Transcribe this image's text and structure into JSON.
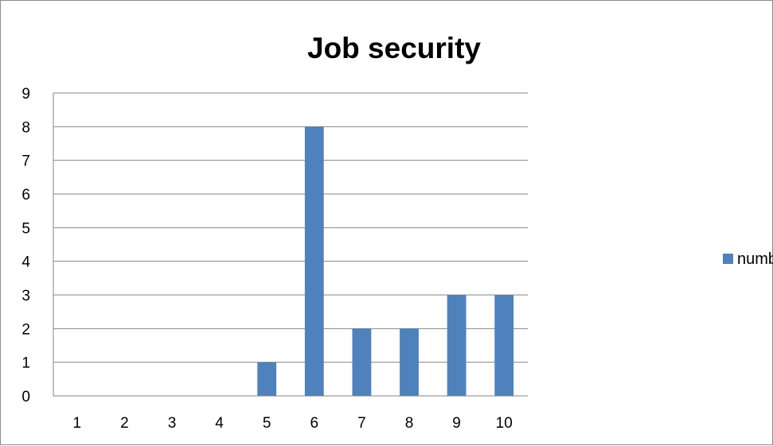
{
  "chart_data": {
    "type": "bar",
    "title": "Job security",
    "categories": [
      "1",
      "2",
      "3",
      "4",
      "5",
      "6",
      "7",
      "8",
      "9",
      "10"
    ],
    "series": [
      {
        "name": "number of responses",
        "values": [
          0,
          0,
          0,
          0,
          1,
          8,
          2,
          2,
          3,
          3
        ],
        "color": "#4f81bd"
      }
    ],
    "xlabel": "",
    "ylabel": "",
    "ylim": [
      0,
      9
    ],
    "yticks": [
      0,
      1,
      2,
      3,
      4,
      5,
      6,
      7,
      8,
      9
    ],
    "grid": true,
    "legend_position": "right"
  },
  "colors": {
    "bar": "#4f81bd",
    "gridline": "#868686",
    "axis": "#868686",
    "frame": "#8c8c8c"
  }
}
